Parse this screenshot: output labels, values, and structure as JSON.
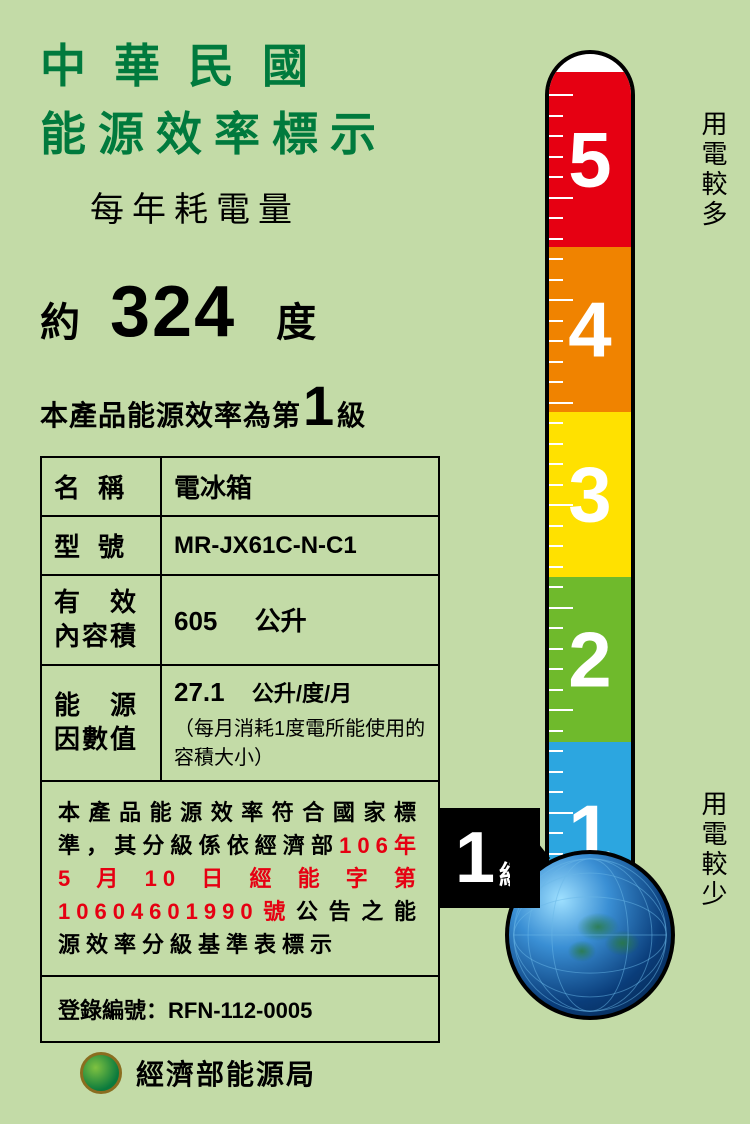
{
  "header": {
    "line1": "中華民國",
    "line2": "能源效率標示",
    "annual_label": "每年耗電量"
  },
  "consumption": {
    "approx": "約",
    "value": "324",
    "unit": "度"
  },
  "grade_statement": {
    "prefix": "本產品能源效率為第",
    "number": "1",
    "suffix": "級"
  },
  "specs": {
    "name_label": "名稱",
    "name_value": "電冰箱",
    "model_label": "型號",
    "model_value": "MR-JX61C-N-C1",
    "volume_label": "有效內容積",
    "volume_value": "605",
    "volume_unit": "公升",
    "factor_label": "能源因數值",
    "factor_value": "27.1",
    "factor_unit": "公升/度/月",
    "factor_note": "（每月消耗1度電所能使用的容積大小）"
  },
  "compliance": {
    "text1": "本產品能源效率符合國家標準，其分級係依經濟部",
    "text_red": "106年5月10日經能字第10604601990號",
    "text2": "公告之能源效率分級基準表標示"
  },
  "registration": {
    "label": "登錄編號：",
    "value": "RFN-112-0005"
  },
  "footer": {
    "agency": "經濟部能源局"
  },
  "thermometer": {
    "segments": [
      {
        "num": "5",
        "color": "#e60012"
      },
      {
        "num": "4",
        "color": "#f08300"
      },
      {
        "num": "3",
        "color": "#ffe100"
      },
      {
        "num": "2",
        "color": "#6fba2c"
      },
      {
        "num": "1",
        "color": "#2ca6e0"
      }
    ],
    "top_label": "用電較多",
    "bottom_label": "用電較少",
    "tick_count": 40
  },
  "pointer": {
    "number": "1",
    "unit": "級"
  },
  "colors": {
    "background": "#c3dba7",
    "title_green": "#007a3d",
    "red_text": "#e60012",
    "black": "#000000"
  }
}
